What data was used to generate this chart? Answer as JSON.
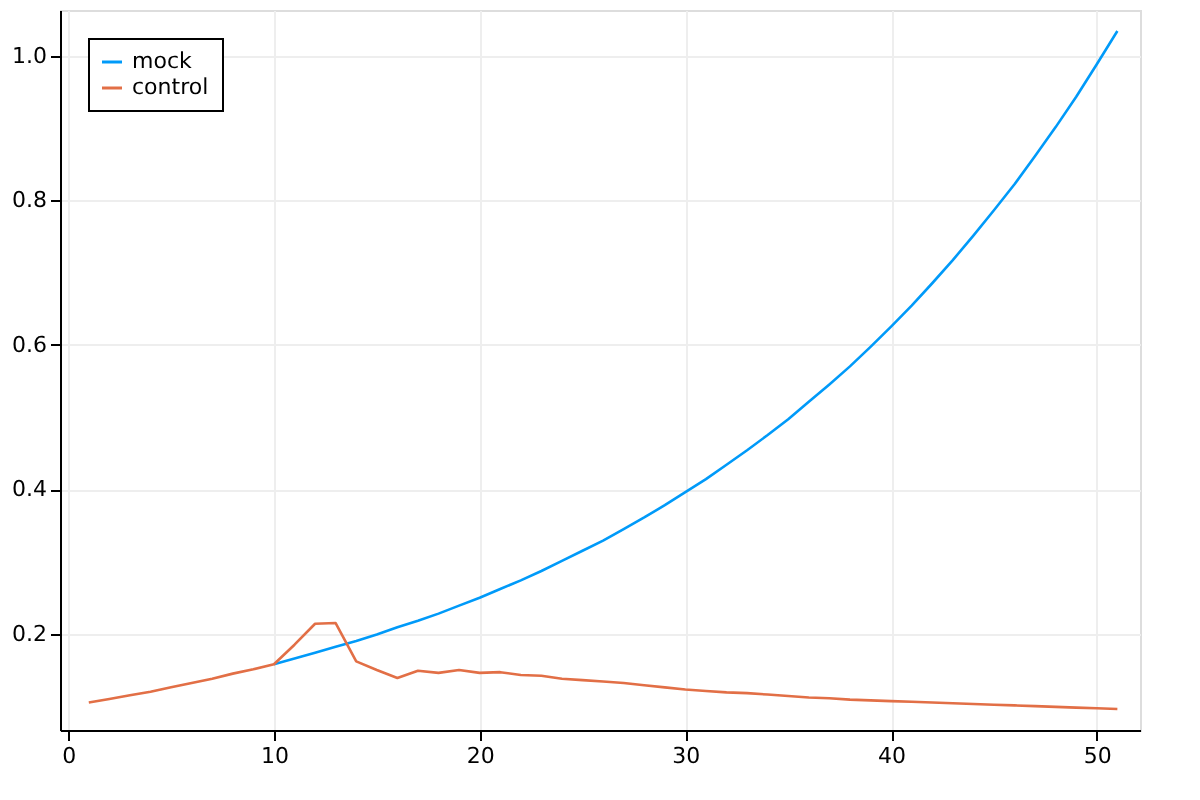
{
  "chart_data": {
    "type": "line",
    "x": [
      1,
      2,
      3,
      4,
      5,
      6,
      7,
      8,
      9,
      10,
      11,
      12,
      13,
      14,
      15,
      16,
      17,
      18,
      19,
      20,
      21,
      22,
      23,
      24,
      25,
      26,
      27,
      28,
      29,
      30,
      31,
      32,
      33,
      34,
      35,
      36,
      37,
      38,
      39,
      40,
      41,
      42,
      43,
      44,
      45,
      46,
      47,
      48,
      49,
      50,
      51
    ],
    "series": [
      {
        "name": "mock",
        "color": "#009af9",
        "values": [
          null,
          null,
          null,
          null,
          null,
          null,
          null,
          null,
          null,
          0.158,
          0.166,
          0.174,
          0.182,
          0.19,
          0.199,
          0.209,
          0.218,
          0.228,
          0.239,
          0.25,
          0.262,
          0.274,
          0.287,
          0.301,
          0.315,
          0.329,
          0.345,
          0.361,
          0.378,
          0.396,
          0.414,
          0.434,
          0.454,
          0.475,
          0.497,
          0.521,
          0.545,
          0.57,
          0.597,
          0.625,
          0.654,
          0.685,
          0.717,
          0.751,
          0.786,
          0.822,
          0.861,
          0.901,
          0.943,
          0.988,
          1.034
        ]
      },
      {
        "name": "control",
        "color": "#e26f46",
        "values": [
          0.105,
          0.11,
          0.115,
          0.12,
          0.126,
          0.132,
          0.138,
          0.145,
          0.151,
          0.158,
          0.185,
          0.214,
          0.215,
          0.162,
          0.15,
          0.139,
          0.149,
          0.146,
          0.15,
          0.146,
          0.147,
          0.143,
          0.142,
          0.138,
          0.136,
          0.134,
          0.132,
          0.129,
          0.126,
          0.123,
          0.121,
          0.119,
          0.118,
          0.116,
          0.114,
          0.112,
          0.111,
          0.109,
          0.108,
          0.107,
          0.106,
          0.105,
          0.104,
          0.103,
          0.102,
          0.101,
          0.1,
          0.099,
          0.098,
          0.097,
          0.096
        ]
      }
    ],
    "xlim": [
      -0.4,
      52.1
    ],
    "xticks": [
      0,
      10,
      20,
      30,
      40,
      50
    ],
    "ylim": [
      0.067,
      1.063
    ],
    "yticks": [
      {
        "value": 0.2,
        "label": "0.2"
      },
      {
        "value": 0.4,
        "label": "0.4"
      },
      {
        "value": 0.6,
        "label": "0.6"
      },
      {
        "value": 0.8,
        "label": "0.8"
      },
      {
        "value": 1.0,
        "label": "1.0"
      }
    ],
    "grid": true,
    "legend": "top left",
    "line_style": "solid",
    "marker": "none"
  }
}
